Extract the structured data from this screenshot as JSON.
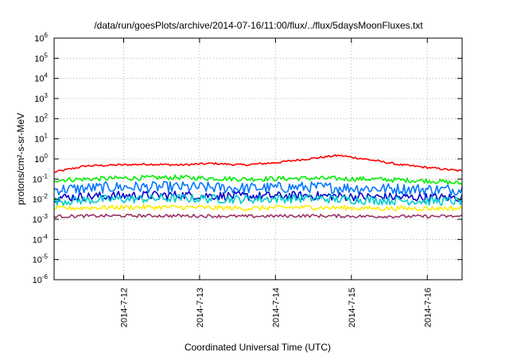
{
  "chart_data": {
    "type": "line",
    "title": "/data/run/goesPlots/archive/2014-07-16/11:00/flux/../flux/5daysMoonFluxes.txt",
    "xlabel": "Coordinated Universal Time (UTC)",
    "ylabel": "protons/cm²-s-sr-MeV",
    "y_scale": "log",
    "ylim": [
      1e-06,
      1000000.0
    ],
    "xlim": [
      "2014-07-11 02:00",
      "2014-07-16 11:00"
    ],
    "grid": true,
    "x_tick_labels": [
      {
        "date": "2014-07-12",
        "label": "2014-7-12"
      },
      {
        "date": "2014-07-13",
        "label": "2014-7-13"
      },
      {
        "date": "2014-07-14",
        "label": "2014-7-14"
      },
      {
        "date": "2014-07-15",
        "label": "2014-7-15"
      },
      {
        "date": "2014-07-16",
        "label": "2014-7-16"
      }
    ],
    "y_ticks": [
      {
        "value": 1000000.0,
        "mant": "10",
        "exp": "6"
      },
      {
        "value": 100000.0,
        "mant": "10",
        "exp": "5"
      },
      {
        "value": 10000.0,
        "mant": "10",
        "exp": "4"
      },
      {
        "value": 1000.0,
        "mant": "10",
        "exp": "3"
      },
      {
        "value": 100.0,
        "mant": "10",
        "exp": "2"
      },
      {
        "value": 10.0,
        "mant": "10",
        "exp": "1"
      },
      {
        "value": 1,
        "mant": "10",
        "exp": "0"
      },
      {
        "value": 0.1,
        "mant": "10",
        "exp": "-1"
      },
      {
        "value": 0.01,
        "mant": "10",
        "exp": "-2"
      },
      {
        "value": 0.001,
        "mant": "10",
        "exp": "-3"
      },
      {
        "value": 0.0001,
        "mant": "10",
        "exp": "-4"
      },
      {
        "value": 1e-05,
        "mant": "10",
        "exp": "-5"
      },
      {
        "value": 1e-06,
        "mant": "10",
        "exp": "-6"
      }
    ],
    "series": [
      {
        "color": "#ff0000",
        "x": [
          "2014-07-11 02:00",
          "2014-07-11 12:00",
          "2014-07-11 22:00",
          "2014-07-12 08:00",
          "2014-07-12 18:00",
          "2014-07-13 04:00",
          "2014-07-13 14:00",
          "2014-07-14 00:00",
          "2014-07-14 10:00",
          "2014-07-14 20:00",
          "2014-07-15 06:00",
          "2014-07-15 16:00",
          "2014-07-16 02:00",
          "2014-07-16 11:00"
        ],
        "values": [
          0.22,
          0.45,
          0.5,
          0.55,
          0.5,
          0.6,
          0.5,
          0.65,
          1.0,
          1.5,
          0.9,
          0.5,
          0.35,
          0.25
        ]
      },
      {
        "color": "#00ee00",
        "x": [
          "2014-07-11 02:00",
          "2014-07-11 22:00",
          "2014-07-12 18:00",
          "2014-07-13 14:00",
          "2014-07-14 10:00",
          "2014-07-15 06:00",
          "2014-07-16 02:00",
          "2014-07-16 11:00"
        ],
        "values": [
          0.09,
          0.11,
          0.12,
          0.1,
          0.11,
          0.1,
          0.08,
          0.06
        ]
      },
      {
        "color": "#0077ff",
        "x": [
          "2014-07-11 02:00",
          "2014-07-11 22:00",
          "2014-07-12 18:00",
          "2014-07-13 14:00",
          "2014-07-14 10:00",
          "2014-07-15 06:00",
          "2014-07-16 02:00",
          "2014-07-16 11:00"
        ],
        "values": [
          0.03,
          0.04,
          0.04,
          0.035,
          0.04,
          0.035,
          0.03,
          0.03
        ]
      },
      {
        "color": "#0000cc",
        "x": [
          "2014-07-11 02:00",
          "2014-07-11 22:00",
          "2014-07-12 18:00",
          "2014-07-13 14:00",
          "2014-07-14 10:00",
          "2014-07-15 06:00",
          "2014-07-16 02:00",
          "2014-07-16 11:00"
        ],
        "values": [
          0.012,
          0.015,
          0.016,
          0.014,
          0.015,
          0.013,
          0.012,
          0.012
        ]
      },
      {
        "color": "#00cccc",
        "x": [
          "2014-07-11 02:00",
          "2014-07-11 22:00",
          "2014-07-12 18:00",
          "2014-07-13 14:00",
          "2014-07-14 10:00",
          "2014-07-15 06:00",
          "2014-07-16 02:00",
          "2014-07-16 11:00"
        ],
        "values": [
          0.008,
          0.01,
          0.011,
          0.01,
          0.011,
          0.009,
          0.008,
          0.008
        ]
      },
      {
        "color": "#ffee00",
        "x": [
          "2014-07-11 02:00",
          "2014-07-11 22:00",
          "2014-07-12 18:00",
          "2014-07-13 14:00",
          "2014-07-14 10:00",
          "2014-07-15 06:00",
          "2014-07-16 02:00",
          "2014-07-16 11:00"
        ],
        "values": [
          0.0035,
          0.004,
          0.004,
          0.0035,
          0.004,
          0.0035,
          0.0035,
          0.0035
        ]
      },
      {
        "color": "#993366",
        "x": [
          "2014-07-11 02:00",
          "2014-07-11 22:00",
          "2014-07-12 18:00",
          "2014-07-13 14:00",
          "2014-07-14 10:00",
          "2014-07-15 06:00",
          "2014-07-16 02:00",
          "2014-07-16 11:00"
        ],
        "values": [
          0.0014,
          0.0015,
          0.0015,
          0.0014,
          0.0015,
          0.0014,
          0.0014,
          0.0014
        ]
      }
    ]
  }
}
